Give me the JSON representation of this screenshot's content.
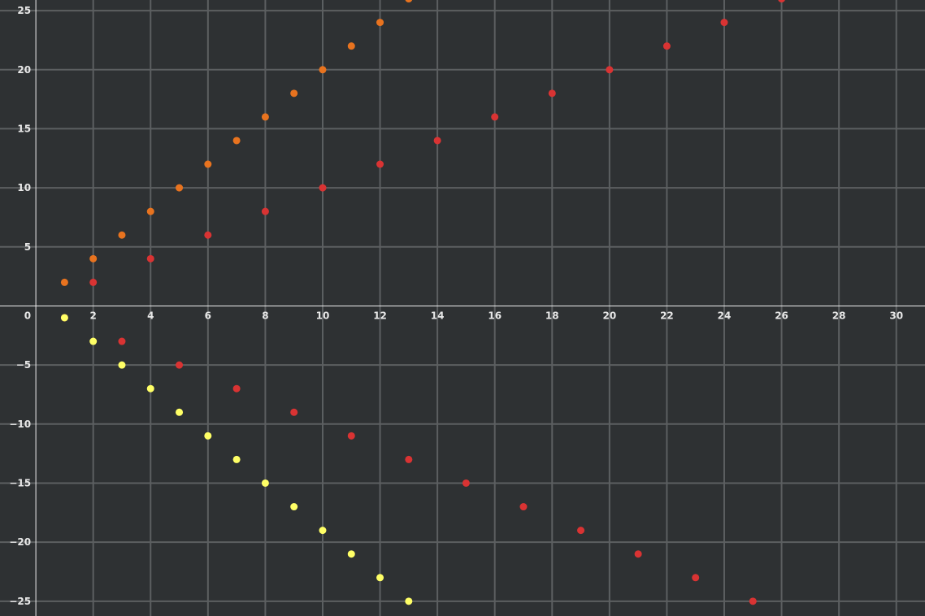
{
  "chart_data": {
    "type": "scatter",
    "title": "",
    "xlabel": "",
    "ylabel": "",
    "xlim": [
      -1.25,
      31
    ],
    "ylim": [
      -26.25,
      25.9
    ],
    "x_ticks": [
      2,
      4,
      6,
      8,
      10,
      12,
      14,
      16,
      18,
      20,
      22,
      24,
      26,
      28,
      30
    ],
    "y_ticks": [
      -25,
      -20,
      -15,
      -10,
      -5,
      5,
      10,
      15,
      20,
      25
    ],
    "origin_label": "0",
    "grid": true,
    "series": [
      {
        "color": "#e8731f",
        "points": [
          [
            1,
            2
          ],
          [
            2,
            4
          ],
          [
            3,
            6
          ],
          [
            4,
            8
          ],
          [
            5,
            10
          ],
          [
            6,
            12
          ],
          [
            7,
            14
          ],
          [
            8,
            16
          ],
          [
            9,
            18
          ],
          [
            10,
            20
          ],
          [
            11,
            22
          ],
          [
            12,
            24
          ],
          [
            13,
            26
          ]
        ]
      },
      {
        "color": "#d93333",
        "points": [
          [
            1,
            -1
          ],
          [
            2,
            2
          ],
          [
            3,
            -3
          ],
          [
            4,
            4
          ],
          [
            5,
            -5
          ],
          [
            6,
            6
          ],
          [
            7,
            -7
          ],
          [
            8,
            8
          ],
          [
            9,
            -9
          ],
          [
            10,
            10
          ],
          [
            11,
            -11
          ],
          [
            12,
            12
          ],
          [
            13,
            -13
          ],
          [
            14,
            14
          ],
          [
            15,
            -15
          ],
          [
            16,
            16
          ],
          [
            17,
            -17
          ],
          [
            18,
            18
          ],
          [
            19,
            -19
          ],
          [
            20,
            20
          ],
          [
            21,
            -21
          ],
          [
            22,
            22
          ],
          [
            23,
            -23
          ],
          [
            24,
            24
          ],
          [
            25,
            -25
          ],
          [
            26,
            26
          ]
        ]
      },
      {
        "color": "#ffff66",
        "points": [
          [
            1,
            -1
          ],
          [
            2,
            -3
          ],
          [
            3,
            -5
          ],
          [
            4,
            -7
          ],
          [
            5,
            -9
          ],
          [
            6,
            -11
          ],
          [
            7,
            -13
          ],
          [
            8,
            -15
          ],
          [
            9,
            -17
          ],
          [
            10,
            -19
          ],
          [
            11,
            -21
          ],
          [
            12,
            -23
          ],
          [
            13,
            -25
          ]
        ]
      }
    ]
  }
}
